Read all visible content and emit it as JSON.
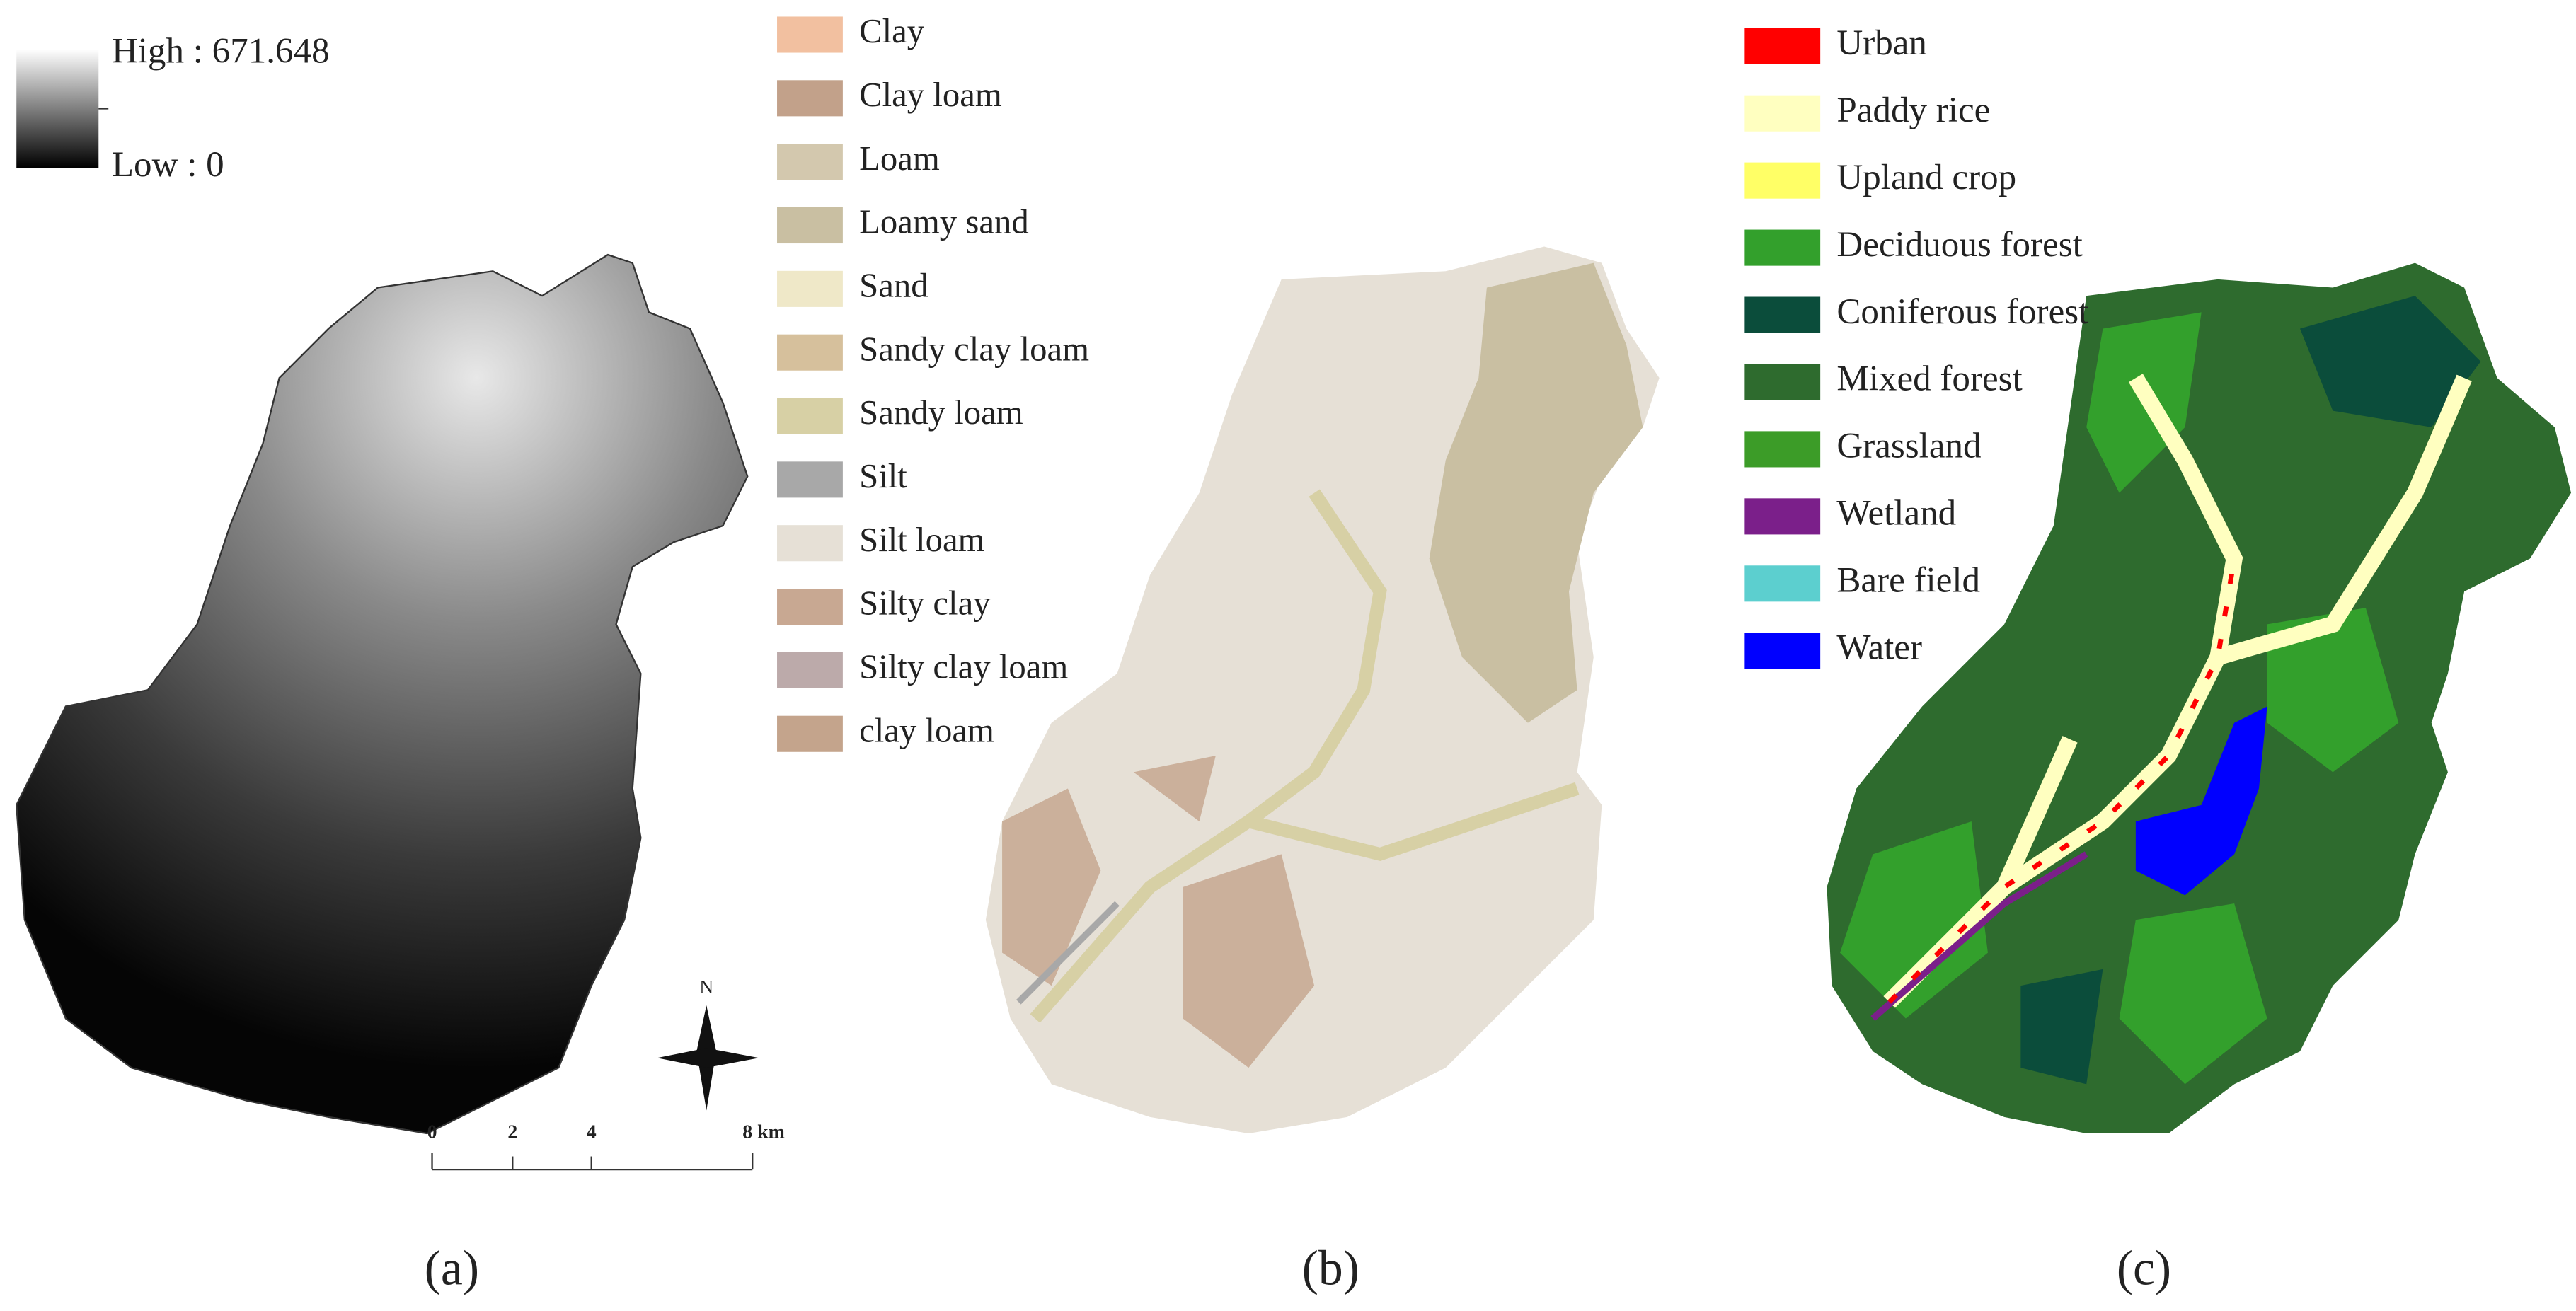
{
  "panels": [
    {
      "caption": "(a)",
      "legend": {
        "high": "High : 671.648",
        "low": "Low : 0"
      },
      "north": "N",
      "scale": [
        "0",
        "2",
        "4",
        "8 km"
      ]
    },
    {
      "caption": "(b)",
      "legend": [
        {
          "label": "Clay",
          "color": "#f2c0a0"
        },
        {
          "label": "Clay loam",
          "color": "#c2a18a"
        },
        {
          "label": "Loam",
          "color": "#d3c8ae"
        },
        {
          "label": "Loamy sand",
          "color": "#c9bfa2"
        },
        {
          "label": "Sand",
          "color": "#efe8c8"
        },
        {
          "label": "Sandy clay loam",
          "color": "#d6c09c"
        },
        {
          "label": "Sandy loam",
          "color": "#d7d0a5"
        },
        {
          "label": "Silt",
          "color": "#a8a8a8"
        },
        {
          "label": "Silt loam",
          "color": "#e6e0d6"
        },
        {
          "label": "Silty clay",
          "color": "#c8a892"
        },
        {
          "label": "Silty clay loam",
          "color": "#bcaaaa"
        },
        {
          "label": "clay loam",
          "color": "#c4a48c"
        }
      ]
    },
    {
      "caption": "(c)",
      "legend": [
        {
          "label": "Urban",
          "color": "#ff0000"
        },
        {
          "label": "Paddy rice",
          "color": "#ffffc0"
        },
        {
          "label": "Upland crop",
          "color": "#ffff66"
        },
        {
          "label": "Deciduous forest",
          "color": "#33a02c"
        },
        {
          "label": "Coniferous forest",
          "color": "#0b4d3b"
        },
        {
          "label": "Mixed forest",
          "color": "#2e6b2e"
        },
        {
          "label": "Grassland",
          "color": "#3c9c28"
        },
        {
          "label": "Wetland",
          "color": "#7b1f8a"
        },
        {
          "label": "Bare field",
          "color": "#5ccfcf"
        },
        {
          "label": "Water",
          "color": "#0000ff"
        }
      ]
    }
  ]
}
